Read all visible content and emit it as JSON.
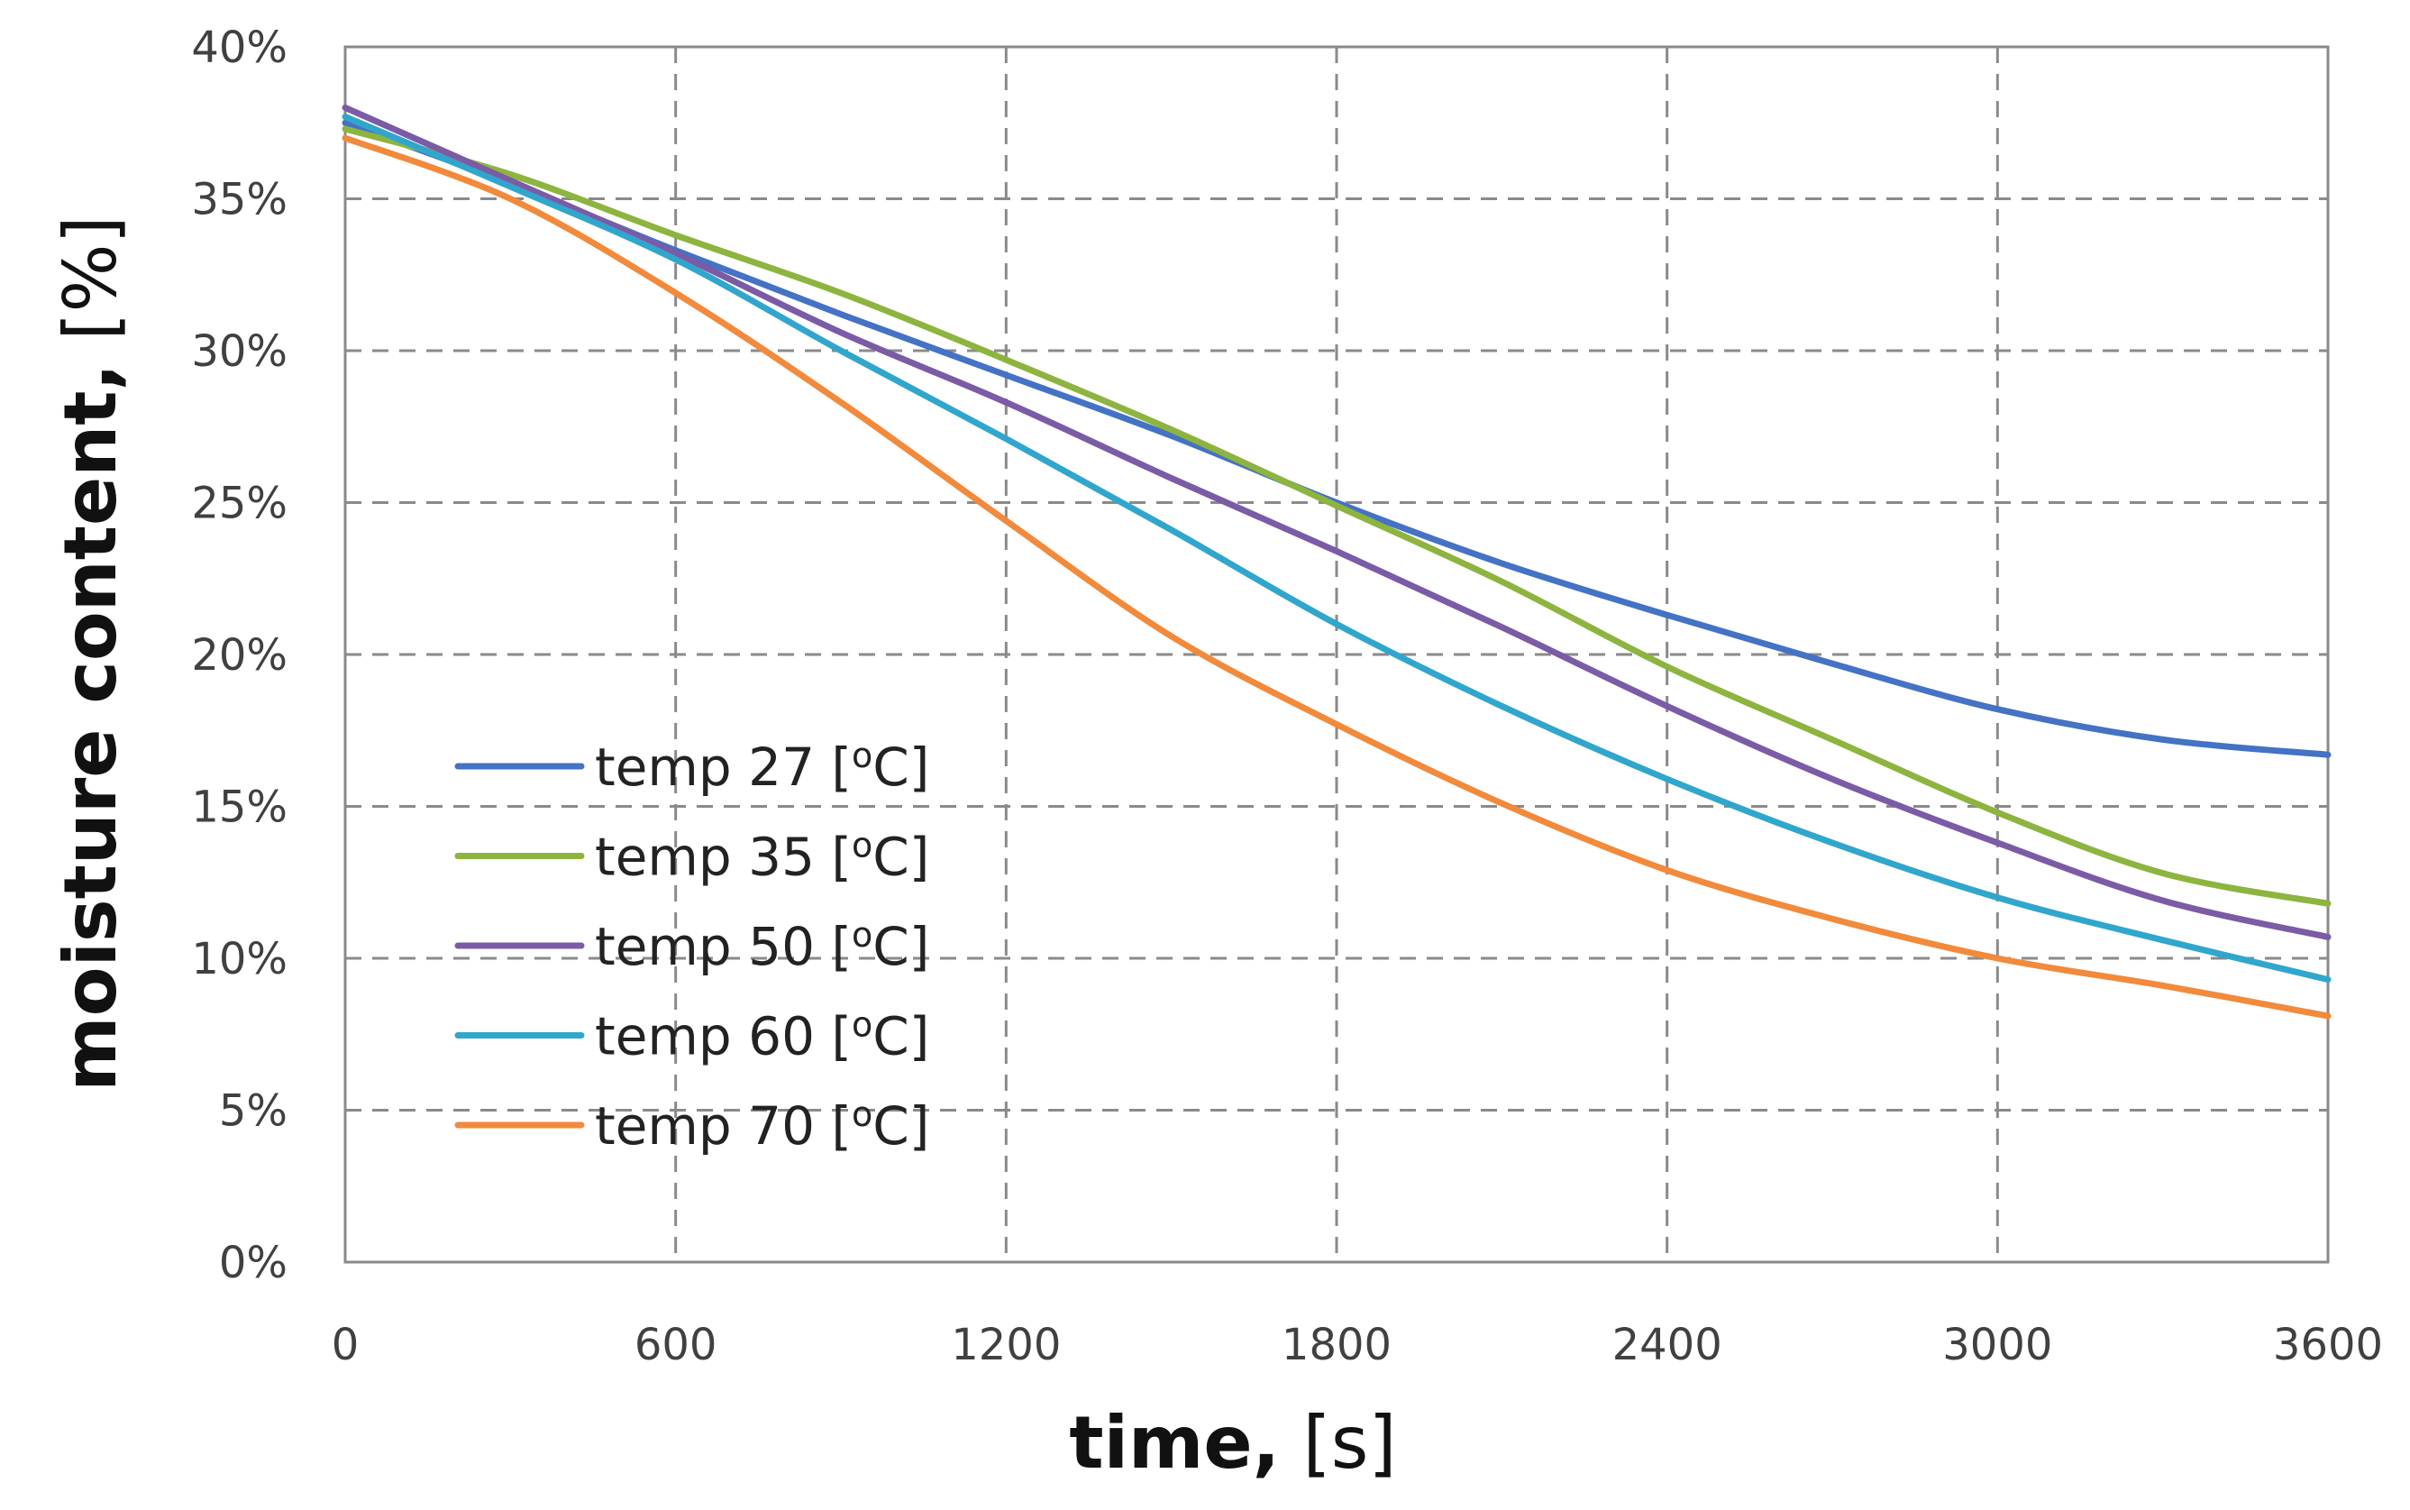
{
  "chart_data": {
    "type": "line",
    "xlabel_bold": "time,",
    "xlabel_unit": "[s]",
    "ylabel_bold": "moisture content,",
    "ylabel_unit": "[%]",
    "xlim": [
      0,
      3600
    ],
    "ylim": [
      0,
      40
    ],
    "xticks": [
      0,
      600,
      1200,
      1800,
      2400,
      3000,
      3600
    ],
    "xtick_labels": [
      "0",
      "600",
      "1200",
      "1800",
      "2400",
      "3000",
      "3600"
    ],
    "yticks": [
      0,
      5,
      10,
      15,
      20,
      25,
      30,
      35,
      40
    ],
    "ytick_labels": [
      "0%",
      "5%",
      "10%",
      "15%",
      "20%",
      "25%",
      "30%",
      "35%",
      "40%"
    ],
    "grid": true,
    "legend_position": "lower-left",
    "x": [
      0,
      300,
      600,
      900,
      1200,
      1500,
      1800,
      2100,
      2400,
      2700,
      3000,
      3300,
      3600
    ],
    "series": [
      {
        "name": "temp 27 [°C]",
        "label_prefix": "temp 27 [",
        "label_degree": "o",
        "label_unit": "C]",
        "color": "#4472C4",
        "values": [
          37.5,
          35.5,
          33.3,
          31.2,
          29.2,
          27.2,
          25.0,
          23.0,
          21.3,
          19.7,
          18.2,
          17.2,
          16.7
        ]
      },
      {
        "name": "temp 35 [°C]",
        "label_prefix": "temp 35 [",
        "label_degree": "o",
        "label_unit": "C]",
        "color": "#8DB43F",
        "values": [
          37.3,
          35.8,
          33.8,
          31.9,
          29.7,
          27.4,
          24.9,
          22.4,
          19.6,
          17.2,
          14.8,
          12.8,
          11.8
        ]
      },
      {
        "name": "temp 50 [°C]",
        "label_prefix": "temp 50 [",
        "label_degree": "o",
        "label_unit": "C]",
        "color": "#7B5BA6",
        "values": [
          38.0,
          35.6,
          33.2,
          30.6,
          28.3,
          25.8,
          23.4,
          20.9,
          18.3,
          15.9,
          13.8,
          11.9,
          10.7
        ]
      },
      {
        "name": "temp 60 [°C]",
        "label_prefix": "temp 60 [",
        "label_degree": "o",
        "label_unit": "C]",
        "color": "#31A6CD",
        "values": [
          37.7,
          35.4,
          33.0,
          30.0,
          27.1,
          24.1,
          21.0,
          18.3,
          15.9,
          13.8,
          12.0,
          10.6,
          9.3
        ]
      },
      {
        "name": "temp 70 [°C]",
        "label_prefix": "temp 70 [",
        "label_degree": "o",
        "label_unit": "C]",
        "color": "#F28A3C",
        "values": [
          37.0,
          35.0,
          31.9,
          28.3,
          24.4,
          20.6,
          17.7,
          15.1,
          12.9,
          11.3,
          10.0,
          9.1,
          8.1
        ]
      }
    ]
  }
}
